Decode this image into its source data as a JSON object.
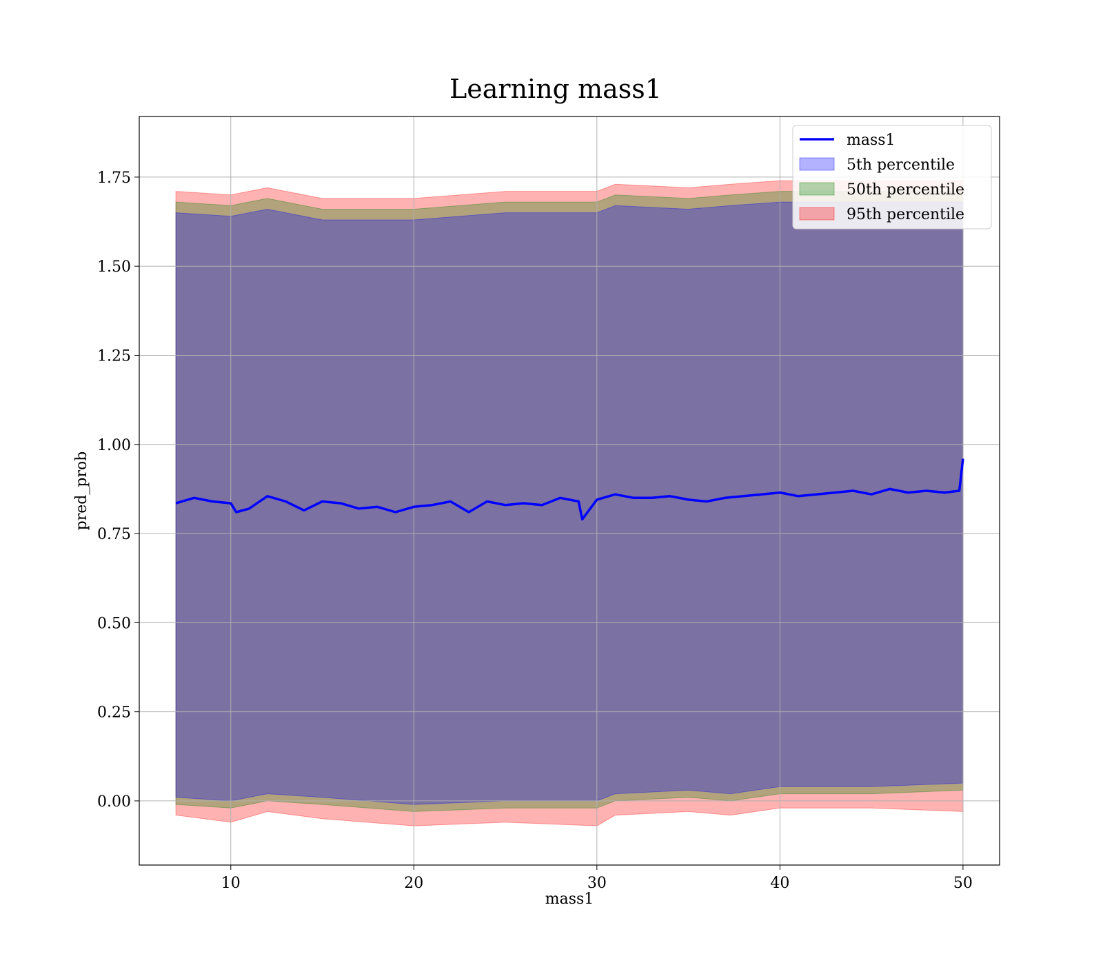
{
  "chart_data": {
    "type": "line",
    "title": "Learning mass1",
    "xlabel": "mass1",
    "ylabel": "pred_prob",
    "xlim": [
      5,
      52
    ],
    "ylim": [
      -0.18,
      1.92
    ],
    "xticks": [
      10,
      20,
      30,
      40,
      50
    ],
    "xtick_labels": [
      "10",
      "20",
      "30",
      "40",
      "50"
    ],
    "yticks": [
      0.0,
      0.25,
      0.5,
      0.75,
      1.0,
      1.25,
      1.5,
      1.75
    ],
    "ytick_labels": [
      "0.00",
      "0.25",
      "0.50",
      "0.75",
      "1.00",
      "1.25",
      "1.50",
      "1.75"
    ],
    "grid": true,
    "legend_position": "top-right",
    "series": [
      {
        "name": "mass1",
        "kind": "line",
        "color": "#0000ff",
        "x": [
          7.0,
          8.0,
          9.0,
          10.0,
          10.3,
          11.0,
          12.0,
          13.0,
          14.0,
          15.0,
          16.0,
          17.0,
          18.0,
          19.0,
          20.0,
          21.0,
          22.0,
          23.0,
          24.0,
          25.0,
          26.0,
          27.0,
          28.0,
          29.0,
          29.2,
          30.0,
          31.0,
          32.0,
          33.0,
          34.0,
          35.0,
          36.0,
          37.0,
          38.0,
          39.0,
          40.0,
          41.0,
          42.0,
          43.0,
          44.0,
          45.0,
          46.0,
          47.0,
          48.0,
          49.0,
          49.8,
          50.0
        ],
        "y": [
          0.835,
          0.85,
          0.84,
          0.835,
          0.81,
          0.82,
          0.855,
          0.84,
          0.815,
          0.84,
          0.835,
          0.82,
          0.825,
          0.81,
          0.825,
          0.83,
          0.84,
          0.81,
          0.84,
          0.83,
          0.835,
          0.83,
          0.85,
          0.84,
          0.79,
          0.845,
          0.86,
          0.85,
          0.85,
          0.855,
          0.845,
          0.84,
          0.85,
          0.855,
          0.86,
          0.865,
          0.855,
          0.86,
          0.865,
          0.87,
          0.86,
          0.875,
          0.865,
          0.87,
          0.865,
          0.87,
          0.96
        ]
      },
      {
        "name": "5th percentile",
        "kind": "band",
        "color": "#0000ff",
        "x": [
          7.0,
          10.0,
          12.0,
          15.0,
          20.0,
          25.0,
          30.0,
          31.0,
          35.0,
          37.3,
          40.0,
          45.0,
          50.0
        ],
        "lower": [
          0.01,
          0.0,
          0.02,
          0.01,
          -0.01,
          0.0,
          0.0,
          0.02,
          0.03,
          0.02,
          0.04,
          0.04,
          0.05
        ],
        "upper": [
          1.65,
          1.64,
          1.66,
          1.63,
          1.63,
          1.65,
          1.65,
          1.67,
          1.66,
          1.67,
          1.68,
          1.68,
          1.68
        ]
      },
      {
        "name": "50th percentile",
        "kind": "band",
        "color": "#008000",
        "x": [
          7.0,
          10.0,
          12.0,
          15.0,
          20.0,
          25.0,
          30.0,
          31.0,
          35.0,
          37.3,
          40.0,
          45.0,
          50.0
        ],
        "lower": [
          -0.01,
          -0.02,
          0.0,
          -0.01,
          -0.03,
          -0.02,
          -0.02,
          0.0,
          0.01,
          0.0,
          0.02,
          0.02,
          0.03
        ],
        "upper": [
          1.68,
          1.67,
          1.69,
          1.66,
          1.66,
          1.68,
          1.68,
          1.7,
          1.69,
          1.7,
          1.71,
          1.71,
          1.71
        ]
      },
      {
        "name": "95th percentile",
        "kind": "band",
        "color": "#ff0000",
        "x": [
          7.0,
          10.0,
          12.0,
          15.0,
          20.0,
          25.0,
          30.0,
          31.0,
          35.0,
          37.3,
          40.0,
          45.0,
          50.0
        ],
        "lower": [
          -0.04,
          -0.06,
          -0.03,
          -0.05,
          -0.07,
          -0.06,
          -0.07,
          -0.04,
          -0.03,
          -0.04,
          -0.02,
          -0.02,
          -0.03
        ],
        "upper": [
          1.71,
          1.7,
          1.72,
          1.69,
          1.69,
          1.71,
          1.71,
          1.73,
          1.72,
          1.73,
          1.74,
          1.74,
          1.74
        ]
      }
    ]
  }
}
